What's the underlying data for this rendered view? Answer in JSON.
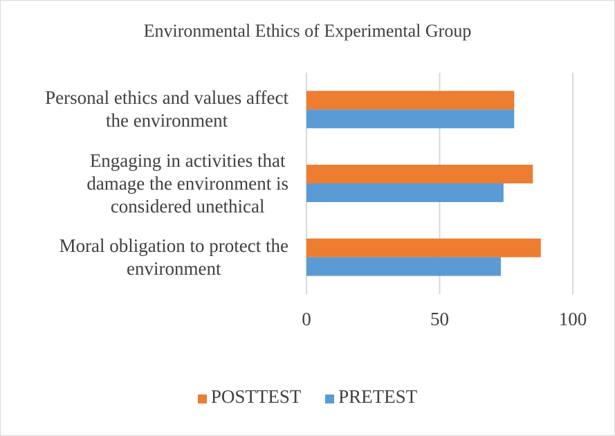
{
  "chart_data": {
    "type": "bar",
    "orientation": "horizontal",
    "title": "Environmental Ethics of Experimental Group",
    "categories": [
      [
        "Personal ethics and values affect",
        "the environment"
      ],
      [
        "Engaging in activities that",
        "damage the environment is",
        "considered unethical"
      ],
      [
        "Moral obligation to protect the",
        "environment"
      ]
    ],
    "series": [
      {
        "name": "POSTTEST",
        "color": "#ed7d31",
        "values": [
          78,
          85,
          88
        ]
      },
      {
        "name": "PRETEST",
        "color": "#5b9bd5",
        "values": [
          78,
          74,
          73
        ]
      }
    ],
    "xlim": [
      0,
      100
    ],
    "xticks": [
      "0",
      "50",
      "100"
    ],
    "grid": true,
    "legend_position": "bottom"
  }
}
